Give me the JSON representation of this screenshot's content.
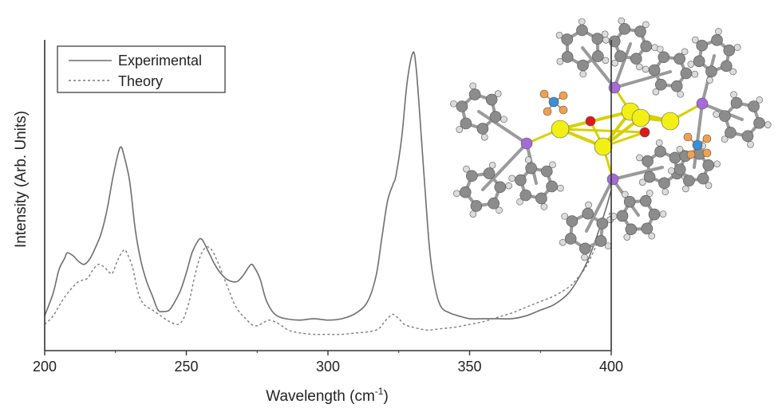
{
  "chart_data": {
    "type": "line",
    "xlabel": "Wavelength (cm",
    "xlabel_sup": "-1",
    "xlabel_tail": ")",
    "ylabel": "Intensity (Arb. Units)",
    "xlim": [
      200,
      400
    ],
    "ylim": [
      0,
      1
    ],
    "x_ticks": [
      "200",
      "250",
      "300",
      "350",
      "400"
    ],
    "legend": {
      "placement": "top-left"
    },
    "series": [
      {
        "name": "Experimental",
        "style": "solid",
        "color": "#6e6e6e",
        "points": [
          [
            200,
            0.08
          ],
          [
            203,
            0.16
          ],
          [
            205,
            0.24
          ],
          [
            207,
            0.28
          ],
          [
            208,
            0.3
          ],
          [
            210,
            0.29
          ],
          [
            212,
            0.27
          ],
          [
            214,
            0.26
          ],
          [
            216,
            0.28
          ],
          [
            218,
            0.32
          ],
          [
            220,
            0.37
          ],
          [
            222,
            0.45
          ],
          [
            224,
            0.56
          ],
          [
            226,
            0.65
          ],
          [
            227,
            0.67
          ],
          [
            228,
            0.64
          ],
          [
            230,
            0.55
          ],
          [
            232,
            0.38
          ],
          [
            234,
            0.27
          ],
          [
            236,
            0.2
          ],
          [
            238,
            0.15
          ],
          [
            240,
            0.1
          ],
          [
            242,
            0.095
          ],
          [
            244,
            0.1
          ],
          [
            246,
            0.13
          ],
          [
            248,
            0.17
          ],
          [
            250,
            0.23
          ],
          [
            252,
            0.3
          ],
          [
            254,
            0.34
          ],
          [
            255,
            0.35
          ],
          [
            256,
            0.34
          ],
          [
            258,
            0.3
          ],
          [
            260,
            0.26
          ],
          [
            262,
            0.23
          ],
          [
            264,
            0.21
          ],
          [
            266,
            0.2
          ],
          [
            268,
            0.2
          ],
          [
            270,
            0.22
          ],
          [
            272,
            0.25
          ],
          [
            273,
            0.26
          ],
          [
            274,
            0.25
          ],
          [
            276,
            0.21
          ],
          [
            278,
            0.14
          ],
          [
            280,
            0.1
          ],
          [
            282,
            0.08
          ],
          [
            285,
            0.07
          ],
          [
            290,
            0.065
          ],
          [
            295,
            0.07
          ],
          [
            300,
            0.065
          ],
          [
            305,
            0.07
          ],
          [
            310,
            0.09
          ],
          [
            314,
            0.13
          ],
          [
            317,
            0.22
          ],
          [
            319,
            0.35
          ],
          [
            321,
            0.48
          ],
          [
            323,
            0.54
          ],
          [
            324,
            0.57
          ],
          [
            326,
            0.7
          ],
          [
            328,
            0.9
          ],
          [
            330,
            1.0
          ],
          [
            331,
            0.96
          ],
          [
            332,
            0.84
          ],
          [
            334,
            0.56
          ],
          [
            336,
            0.3
          ],
          [
            338,
            0.17
          ],
          [
            340,
            0.11
          ],
          [
            343,
            0.09
          ],
          [
            346,
            0.08
          ],
          [
            350,
            0.07
          ],
          [
            355,
            0.07
          ],
          [
            360,
            0.07
          ],
          [
            365,
            0.07
          ],
          [
            370,
            0.08
          ],
          [
            375,
            0.1
          ],
          [
            380,
            0.12
          ],
          [
            385,
            0.16
          ],
          [
            389,
            0.22
          ],
          [
            392,
            0.28
          ],
          [
            395,
            0.36
          ],
          [
            398,
            0.45
          ],
          [
            400,
            0.52
          ]
        ]
      },
      {
        "name": "Theory",
        "style": "dashed",
        "color": "#7a7a7a",
        "points": [
          [
            200,
            0.05
          ],
          [
            203,
            0.08
          ],
          [
            206,
            0.13
          ],
          [
            209,
            0.17
          ],
          [
            212,
            0.2
          ],
          [
            215,
            0.21
          ],
          [
            217,
            0.24
          ],
          [
            219,
            0.26
          ],
          [
            221,
            0.25
          ],
          [
            223,
            0.23
          ],
          [
            224,
            0.23
          ],
          [
            226,
            0.28
          ],
          [
            228,
            0.31
          ],
          [
            229,
            0.3
          ],
          [
            231,
            0.25
          ],
          [
            233,
            0.16
          ],
          [
            235,
            0.12
          ],
          [
            238,
            0.1
          ],
          [
            241,
            0.08
          ],
          [
            244,
            0.06
          ],
          [
            247,
            0.05
          ],
          [
            249,
            0.07
          ],
          [
            251,
            0.13
          ],
          [
            253,
            0.22
          ],
          [
            255,
            0.29
          ],
          [
            257,
            0.32
          ],
          [
            259,
            0.31
          ],
          [
            261,
            0.27
          ],
          [
            263,
            0.22
          ],
          [
            265,
            0.17
          ],
          [
            267,
            0.12
          ],
          [
            269,
            0.09
          ],
          [
            271,
            0.07
          ],
          [
            273,
            0.05
          ],
          [
            275,
            0.045
          ],
          [
            277,
            0.055
          ],
          [
            279,
            0.065
          ],
          [
            281,
            0.06
          ],
          [
            283,
            0.05
          ],
          [
            286,
            0.03
          ],
          [
            290,
            0.02
          ],
          [
            295,
            0.015
          ],
          [
            300,
            0.015
          ],
          [
            305,
            0.015
          ],
          [
            310,
            0.02
          ],
          [
            315,
            0.025
          ],
          [
            318,
            0.035
          ],
          [
            320,
            0.06
          ],
          [
            322,
            0.08
          ],
          [
            323,
            0.085
          ],
          [
            325,
            0.07
          ],
          [
            327,
            0.05
          ],
          [
            330,
            0.04
          ],
          [
            335,
            0.03
          ],
          [
            340,
            0.035
          ],
          [
            345,
            0.04
          ],
          [
            350,
            0.05
          ],
          [
            355,
            0.06
          ],
          [
            360,
            0.075
          ],
          [
            365,
            0.09
          ],
          [
            370,
            0.11
          ],
          [
            375,
            0.13
          ],
          [
            380,
            0.15
          ],
          [
            385,
            0.18
          ],
          [
            388,
            0.21
          ],
          [
            391,
            0.25
          ],
          [
            394,
            0.31
          ],
          [
            397,
            0.38
          ],
          [
            400,
            0.45
          ]
        ]
      }
    ]
  },
  "inset": {
    "name": "molecular-structure-inset",
    "colors": {
      "gold": "#f2ef16",
      "oxygen": "#dd1a1a",
      "phosphorus": "#a66bd6",
      "carbon": "#8c8c8c",
      "hydrogen": "#dcdcdc",
      "nitrogen": "#3a8fd6",
      "fluorine": "#f0a050"
    }
  }
}
